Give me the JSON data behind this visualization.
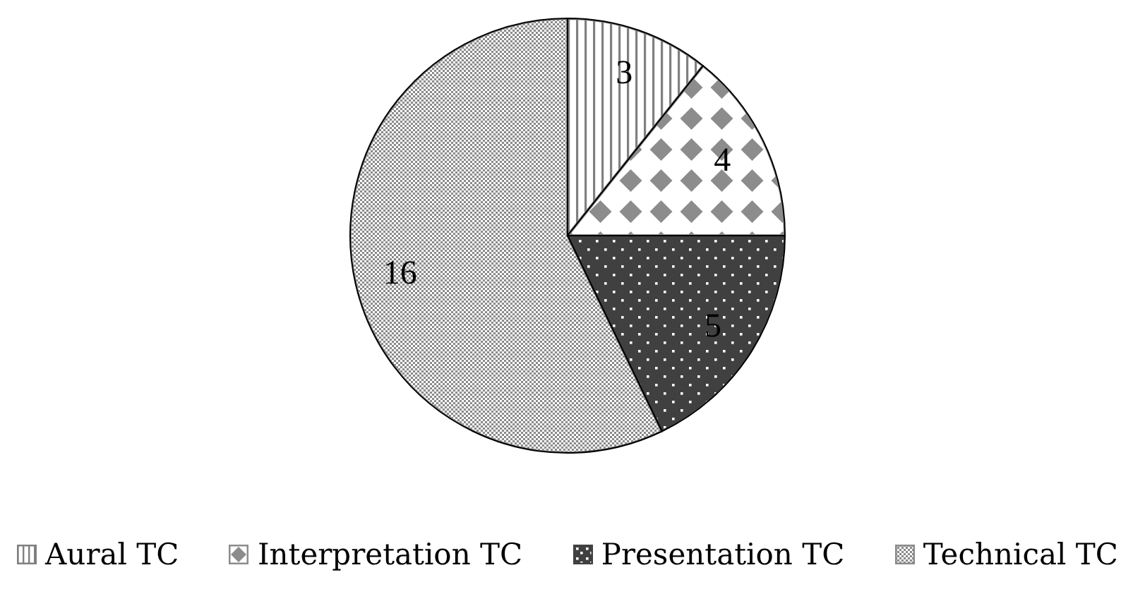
{
  "chart_data": {
    "type": "pie",
    "categories": [
      "Aural TC",
      "Interpretation TC",
      "Presentation TC",
      "Technical TC"
    ],
    "values": [
      3,
      4,
      5,
      16
    ],
    "colors": [
      "#808080",
      "#8c8c8c",
      "#404040",
      "#8a8a8a"
    ],
    "data_labels": true,
    "legend": "bottom"
  }
}
